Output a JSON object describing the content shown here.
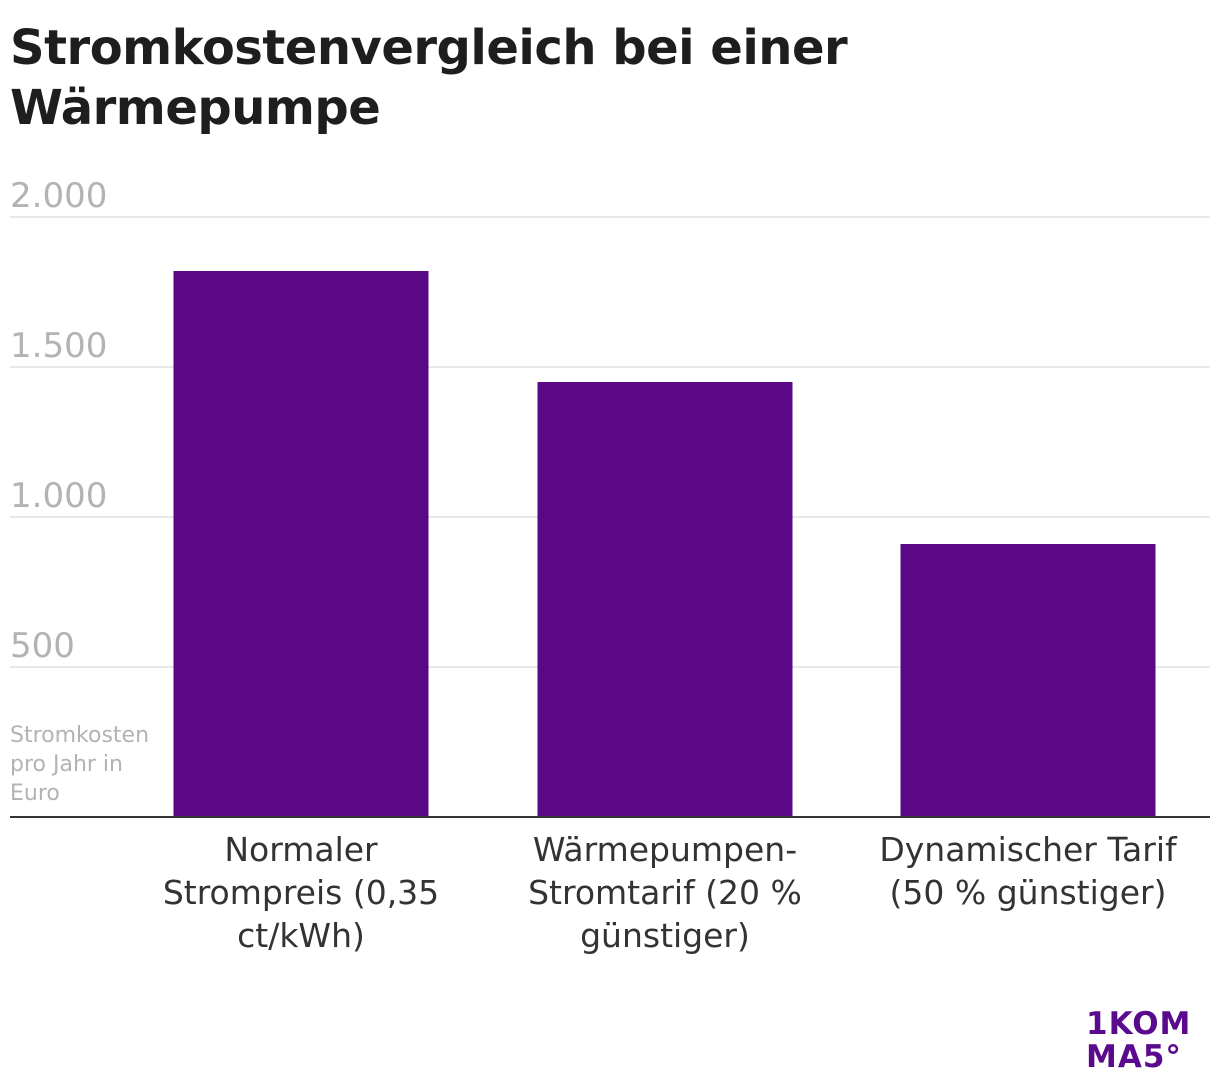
{
  "chart_data": {
    "type": "bar",
    "title": "Stromkostenvergleich bei einer Wärmepumpe",
    "categories": [
      [
        "Normaler",
        "Strompreis (0,35",
        "ct/kWh)"
      ],
      [
        "Wärmepumpen-",
        "Stromtarif (20 %",
        "günstiger)"
      ],
      [
        "Dynamischer Tarif",
        "(50 % günstiger)"
      ]
    ],
    "values": [
      1820,
      1450,
      910
    ],
    "ylabel": [
      "Stromkosten",
      "pro Jahr in",
      "Euro"
    ],
    "ylim": [
      0,
      2000
    ],
    "yticks": [
      {
        "value": 500,
        "label": "500"
      },
      {
        "value": 1000,
        "label": "1.000"
      },
      {
        "value": 1500,
        "label": "1.500"
      },
      {
        "value": 2000,
        "label": "2.000"
      }
    ],
    "grid": true,
    "bar_color": "#5b0887",
    "grid_color": "#e1e1e1",
    "axis_color": "#333333"
  },
  "logo": {
    "line1": "1KOM",
    "line2": "MA5°"
  }
}
